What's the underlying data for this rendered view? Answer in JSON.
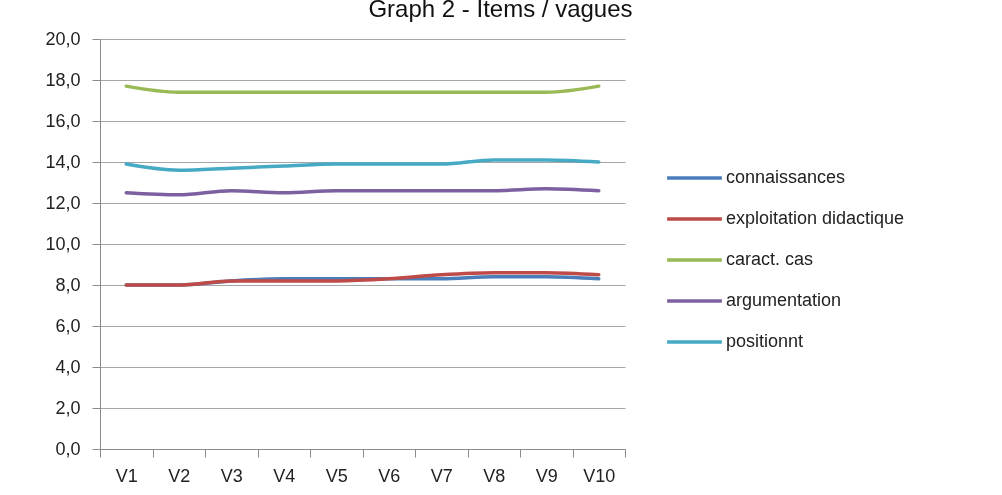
{
  "chart_data": {
    "type": "line",
    "title": "Graph 2 - Items / vagues",
    "categories": [
      "V1",
      "V2",
      "V3",
      "V4",
      "V5",
      "V6",
      "V7",
      "V8",
      "V9",
      "V10"
    ],
    "series": [
      {
        "name": "connaissances",
        "color": "#4a7ebb",
        "values": [
          8.0,
          8.0,
          8.2,
          8.3,
          8.3,
          8.3,
          8.3,
          8.4,
          8.4,
          8.3
        ]
      },
      {
        "name": "exploitation didactique",
        "color": "#be4b48",
        "values": [
          8.0,
          8.0,
          8.2,
          8.2,
          8.2,
          8.3,
          8.5,
          8.6,
          8.6,
          8.5
        ]
      },
      {
        "name": "caract. cas",
        "color": "#98b954",
        "values": [
          17.7,
          17.4,
          17.4,
          17.4,
          17.4,
          17.4,
          17.4,
          17.4,
          17.4,
          17.7
        ]
      },
      {
        "name": "argumentation",
        "color": "#7d60a0",
        "values": [
          12.5,
          12.4,
          12.6,
          12.5,
          12.6,
          12.6,
          12.6,
          12.6,
          12.7,
          12.6
        ]
      },
      {
        "name": "positionnt",
        "color": "#46aac5",
        "values": [
          13.9,
          13.6,
          13.7,
          13.8,
          13.9,
          13.9,
          13.9,
          14.1,
          14.1,
          14.0
        ]
      }
    ],
    "ylim": [
      0,
      20
    ],
    "yticks": [
      {
        "value": 0,
        "label": "0,0"
      },
      {
        "value": 2,
        "label": "2,0"
      },
      {
        "value": 4,
        "label": "4,0"
      },
      {
        "value": 6,
        "label": "6,0"
      },
      {
        "value": 8,
        "label": "8,0"
      },
      {
        "value": 10,
        "label": "10,0"
      },
      {
        "value": 12,
        "label": "12,0"
      },
      {
        "value": 14,
        "label": "14,0"
      },
      {
        "value": 16,
        "label": "16,0"
      },
      {
        "value": 18,
        "label": "18,0"
      },
      {
        "value": 20,
        "label": "20,0"
      }
    ],
    "grid": "y",
    "legend": "right",
    "line_style": "solid"
  }
}
